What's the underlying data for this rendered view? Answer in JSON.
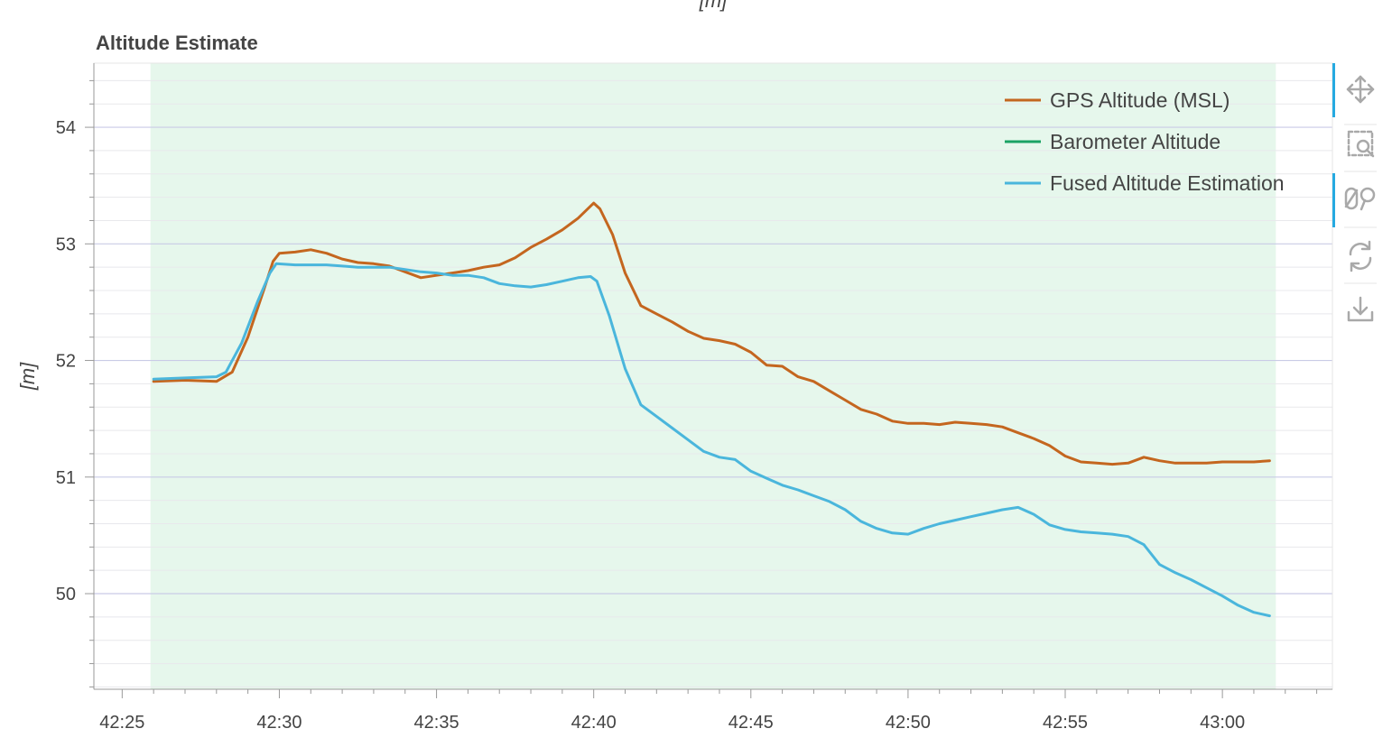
{
  "chart_data": {
    "type": "line",
    "title": "Altitude Estimate",
    "top_axis_label": "[m]",
    "ylabel": "[m]",
    "xlabel": "",
    "xlim": [
      "42:24.1",
      "43:03.5"
    ],
    "ylim": [
      49.18,
      54.55
    ],
    "x_ticks": [
      "42:25",
      "42:30",
      "42:35",
      "42:40",
      "42:45",
      "42:50",
      "42:55",
      "43:00"
    ],
    "y_ticks": [
      50,
      51,
      52,
      53,
      54
    ],
    "highlight_region": {
      "x_start": "42:25.9",
      "x_end": "43:01.7",
      "color": "#e6f7ec"
    },
    "grid": true,
    "legend_position": "top-right",
    "series": [
      {
        "name": "GPS Altitude (MSL)",
        "color": "#c4661f",
        "points": [
          [
            "42:26.0",
            51.82
          ],
          [
            "42:27.0",
            51.83
          ],
          [
            "42:28.0",
            51.82
          ],
          [
            "42:28.5",
            51.9
          ],
          [
            "42:29.0",
            52.2
          ],
          [
            "42:29.5",
            52.6
          ],
          [
            "42:29.8",
            52.85
          ],
          [
            "42:30.0",
            52.92
          ],
          [
            "42:30.5",
            52.93
          ],
          [
            "42:31.0",
            52.95
          ],
          [
            "42:31.5",
            52.92
          ],
          [
            "42:32.0",
            52.87
          ],
          [
            "42:32.5",
            52.84
          ],
          [
            "42:33.0",
            52.83
          ],
          [
            "42:33.5",
            52.81
          ],
          [
            "42:34.0",
            52.76
          ],
          [
            "42:34.5",
            52.71
          ],
          [
            "42:35.0",
            52.73
          ],
          [
            "42:35.5",
            52.75
          ],
          [
            "42:36.0",
            52.77
          ],
          [
            "42:36.5",
            52.8
          ],
          [
            "42:37.0",
            52.82
          ],
          [
            "42:37.5",
            52.88
          ],
          [
            "42:38.0",
            52.97
          ],
          [
            "42:38.5",
            53.04
          ],
          [
            "42:39.0",
            53.12
          ],
          [
            "42:39.5",
            53.22
          ],
          [
            "42:40.0",
            53.35
          ],
          [
            "42:40.2",
            53.3
          ],
          [
            "42:40.6",
            53.08
          ],
          [
            "42:41.0",
            52.75
          ],
          [
            "42:41.5",
            52.47
          ],
          [
            "42:42.0",
            52.4
          ],
          [
            "42:42.5",
            52.33
          ],
          [
            "42:43.0",
            52.25
          ],
          [
            "42:43.5",
            52.19
          ],
          [
            "42:44.0",
            52.17
          ],
          [
            "42:44.5",
            52.14
          ],
          [
            "42:45.0",
            52.07
          ],
          [
            "42:45.5",
            51.96
          ],
          [
            "42:46.0",
            51.95
          ],
          [
            "42:46.5",
            51.86
          ],
          [
            "42:47.0",
            51.82
          ],
          [
            "42:47.5",
            51.74
          ],
          [
            "42:48.0",
            51.66
          ],
          [
            "42:48.5",
            51.58
          ],
          [
            "42:49.0",
            51.54
          ],
          [
            "42:49.5",
            51.48
          ],
          [
            "42:50.0",
            51.46
          ],
          [
            "42:50.5",
            51.46
          ],
          [
            "42:51.0",
            51.45
          ],
          [
            "42:51.5",
            51.47
          ],
          [
            "42:52.0",
            51.46
          ],
          [
            "42:52.5",
            51.45
          ],
          [
            "42:53.0",
            51.43
          ],
          [
            "42:53.5",
            51.38
          ],
          [
            "42:54.0",
            51.33
          ],
          [
            "42:54.5",
            51.27
          ],
          [
            "42:55.0",
            51.18
          ],
          [
            "42:55.5",
            51.13
          ],
          [
            "42:56.0",
            51.12
          ],
          [
            "42:56.5",
            51.11
          ],
          [
            "42:57.0",
            51.12
          ],
          [
            "42:57.5",
            51.17
          ],
          [
            "42:58.0",
            51.14
          ],
          [
            "42:58.5",
            51.12
          ],
          [
            "42:59.0",
            51.12
          ],
          [
            "42:59.5",
            51.12
          ],
          [
            "43:00.0",
            51.13
          ],
          [
            "43:00.5",
            51.13
          ],
          [
            "43:01.0",
            51.13
          ],
          [
            "43:01.5",
            51.14
          ]
        ]
      },
      {
        "name": "Barometer Altitude",
        "color": "#1aa364",
        "points": []
      },
      {
        "name": "Fused Altitude Estimation",
        "color": "#4ab6dc",
        "points": [
          [
            "42:26.0",
            51.84
          ],
          [
            "42:27.0",
            51.85
          ],
          [
            "42:28.0",
            51.86
          ],
          [
            "42:28.3",
            51.9
          ],
          [
            "42:28.8",
            52.15
          ],
          [
            "42:29.3",
            52.5
          ],
          [
            "42:29.7",
            52.75
          ],
          [
            "42:29.9",
            52.83
          ],
          [
            "42:30.5",
            52.82
          ],
          [
            "42:31.0",
            52.82
          ],
          [
            "42:31.5",
            52.82
          ],
          [
            "42:32.0",
            52.81
          ],
          [
            "42:32.5",
            52.8
          ],
          [
            "42:33.0",
            52.8
          ],
          [
            "42:33.5",
            52.8
          ],
          [
            "42:34.0",
            52.78
          ],
          [
            "42:34.5",
            52.76
          ],
          [
            "42:35.0",
            52.75
          ],
          [
            "42:35.5",
            52.73
          ],
          [
            "42:36.0",
            52.73
          ],
          [
            "42:36.5",
            52.71
          ],
          [
            "42:37.0",
            52.66
          ],
          [
            "42:37.5",
            52.64
          ],
          [
            "42:38.0",
            52.63
          ],
          [
            "42:38.5",
            52.65
          ],
          [
            "42:39.0",
            52.68
          ],
          [
            "42:39.5",
            52.71
          ],
          [
            "42:39.9",
            52.72
          ],
          [
            "42:40.1",
            52.68
          ],
          [
            "42:40.5",
            52.38
          ],
          [
            "42:41.0",
            51.93
          ],
          [
            "42:41.5",
            51.62
          ],
          [
            "42:42.0",
            51.52
          ],
          [
            "42:42.5",
            51.42
          ],
          [
            "42:43.0",
            51.32
          ],
          [
            "42:43.5",
            51.22
          ],
          [
            "42:44.0",
            51.17
          ],
          [
            "42:44.5",
            51.15
          ],
          [
            "42:45.0",
            51.05
          ],
          [
            "42:45.5",
            50.99
          ],
          [
            "42:46.0",
            50.93
          ],
          [
            "42:46.5",
            50.89
          ],
          [
            "42:47.0",
            50.84
          ],
          [
            "42:47.5",
            50.79
          ],
          [
            "42:48.0",
            50.72
          ],
          [
            "42:48.5",
            50.62
          ],
          [
            "42:49.0",
            50.56
          ],
          [
            "42:49.5",
            50.52
          ],
          [
            "42:50.0",
            50.51
          ],
          [
            "42:50.5",
            50.56
          ],
          [
            "42:51.0",
            50.6
          ],
          [
            "42:51.5",
            50.63
          ],
          [
            "42:52.0",
            50.66
          ],
          [
            "42:52.5",
            50.69
          ],
          [
            "42:53.0",
            50.72
          ],
          [
            "42:53.5",
            50.74
          ],
          [
            "42:54.0",
            50.68
          ],
          [
            "42:54.5",
            50.59
          ],
          [
            "42:55.0",
            50.55
          ],
          [
            "42:55.5",
            50.53
          ],
          [
            "42:56.0",
            50.52
          ],
          [
            "42:56.5",
            50.51
          ],
          [
            "42:57.0",
            50.49
          ],
          [
            "42:57.5",
            50.42
          ],
          [
            "42:58.0",
            50.25
          ],
          [
            "42:58.5",
            50.18
          ],
          [
            "42:59.0",
            50.12
          ],
          [
            "42:59.5",
            50.05
          ],
          [
            "43:00.0",
            49.98
          ],
          [
            "43:00.5",
            49.9
          ],
          [
            "43:01.0",
            49.84
          ],
          [
            "43:01.5",
            49.81
          ]
        ]
      }
    ]
  },
  "toolbar": {
    "active_color": "#26aae1",
    "tools": [
      {
        "name": "pan",
        "icon": "pan-icon",
        "active": true
      },
      {
        "name": "box-zoom",
        "icon": "box-zoom-icon",
        "active": false
      },
      {
        "name": "wheel-zoom",
        "icon": "wheel-zoom-icon",
        "active": true
      },
      {
        "name": "reset",
        "icon": "reset-icon",
        "active": false
      },
      {
        "name": "save",
        "icon": "save-icon",
        "active": false
      }
    ]
  }
}
